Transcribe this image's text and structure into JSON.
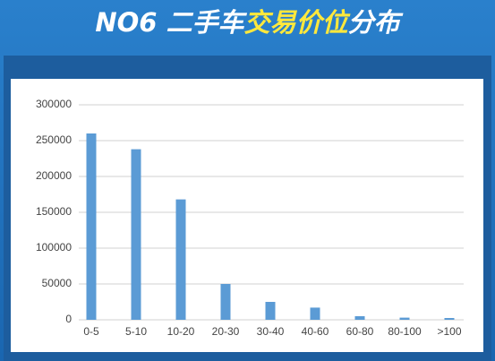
{
  "chart_data": {
    "type": "bar",
    "title_segments": [
      {
        "text": "NO6 二手车",
        "color": "#ffffff"
      },
      {
        "text": "交易价位",
        "color": "#ffe83c"
      },
      {
        "text": "分布",
        "color": "#ffffff"
      }
    ],
    "categories": [
      "0-5",
      "5-10",
      "10-20",
      "20-30",
      "30-40",
      "40-60",
      "60-80",
      "80-100",
      ">100"
    ],
    "values": [
      260000,
      238000,
      168000,
      50000,
      25000,
      17000,
      5000,
      3000,
      2500
    ],
    "color": "#5b9bd5",
    "ylim": [
      0,
      300000
    ],
    "yticks": [
      0,
      50000,
      100000,
      150000,
      200000,
      250000,
      300000
    ],
    "grid": true
  }
}
